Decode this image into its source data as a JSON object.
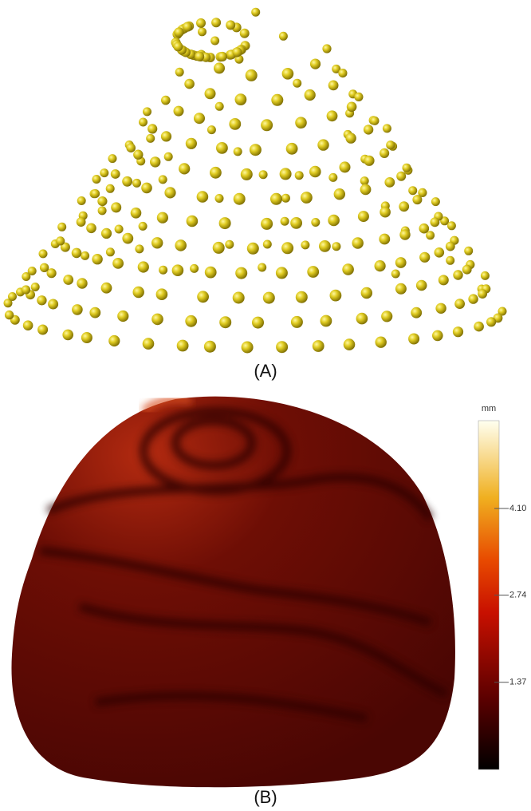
{
  "panel_a": {
    "label": "(A)"
  },
  "panel_b": {
    "label": "(B)",
    "colorbar": {
      "unit": "mm",
      "lim": [
        0,
        5.48
      ],
      "ticks": [
        1.37,
        2.74,
        {
          "value": 4.1,
          "label": "4.10"
        }
      ]
    }
  }
}
